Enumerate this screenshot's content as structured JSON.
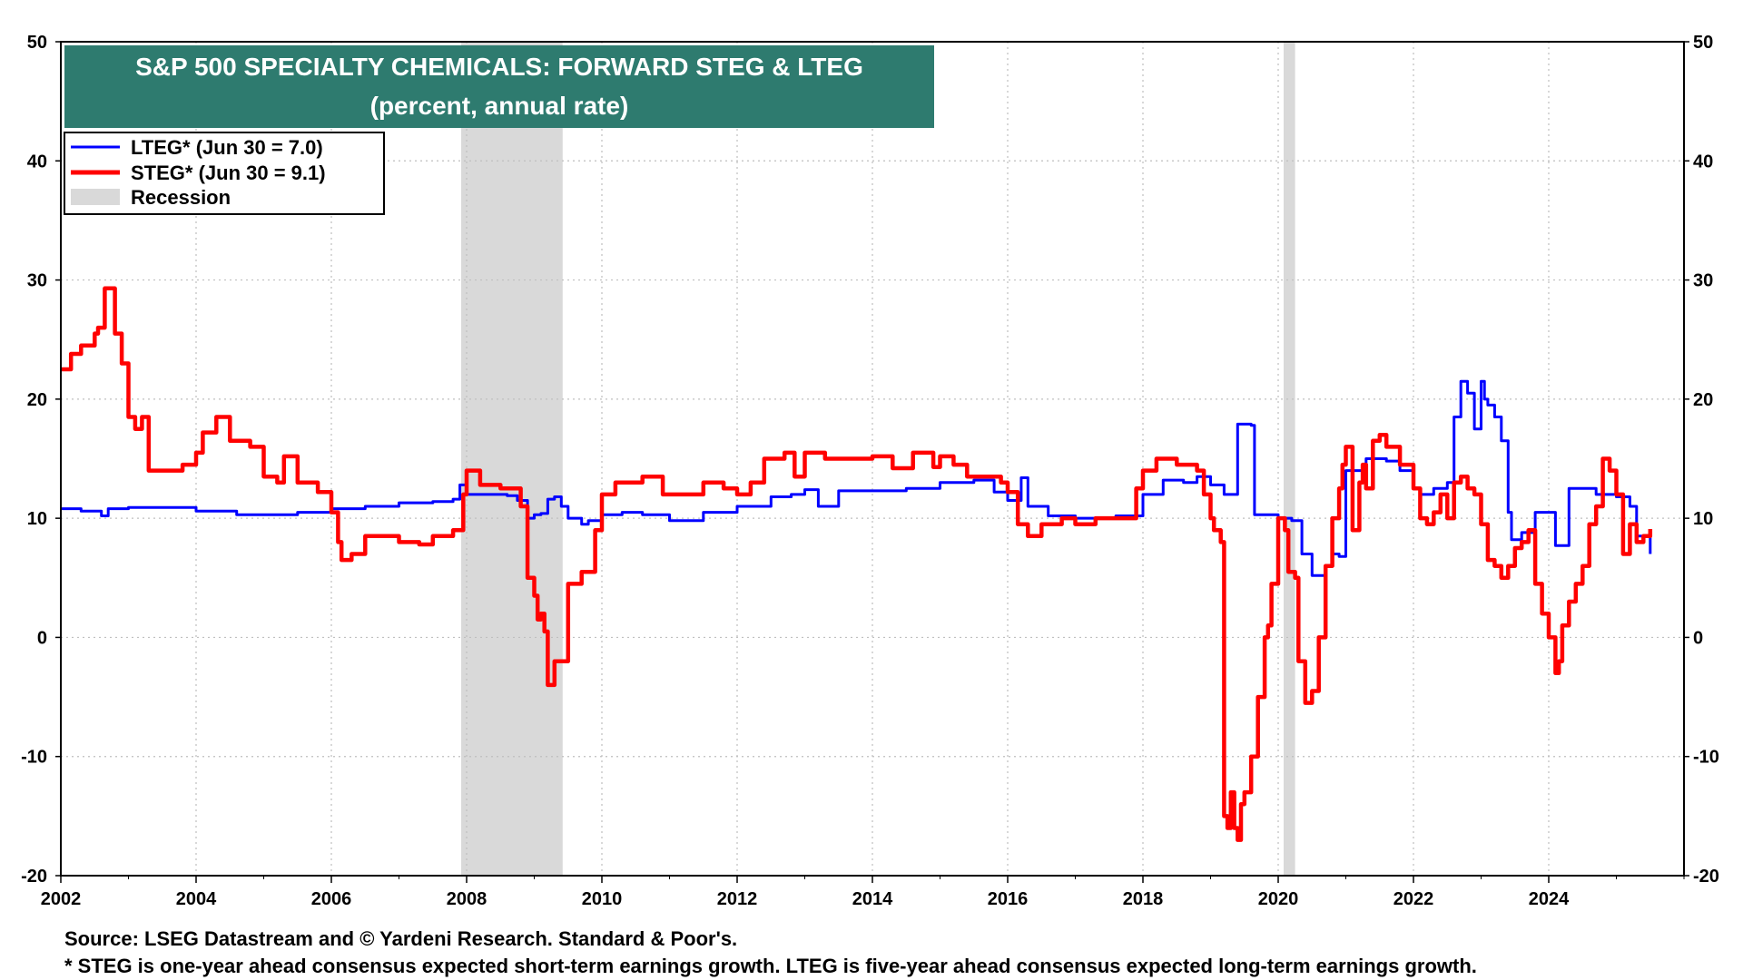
{
  "chart_data": {
    "type": "line",
    "title": "S&P 500 SPECIALTY CHEMICALS: FORWARD STEG & LTEG",
    "subtitle": "(percent, annual rate)",
    "xlabel": "",
    "ylabel": "",
    "xlim": [
      2002,
      2026
    ],
    "ylim": [
      -20,
      50
    ],
    "x_ticks": [
      "2002",
      "2004",
      "2006",
      "2008",
      "2010",
      "2012",
      "2014",
      "2016",
      "2018",
      "2020",
      "2022",
      "2024"
    ],
    "y_ticks": [
      "50",
      "40",
      "30",
      "20",
      "10",
      "0",
      "-10",
      "-20"
    ],
    "grid": true,
    "legend_position": "top-left",
    "legend": [
      {
        "label": "LTEG* (Jun 30 = 7.0)",
        "kind": "line",
        "color": "#0000ff"
      },
      {
        "label": "STEG* (Jun 30 = 9.1)",
        "kind": "line",
        "color": "#ff0000"
      },
      {
        "label": "Recession",
        "kind": "band",
        "color": "#d9d9d9"
      }
    ],
    "recessions": [
      [
        2007.92,
        2009.42
      ],
      [
        2020.08,
        2020.25
      ]
    ],
    "series": [
      {
        "name": "LTEG",
        "color": "#0000ff",
        "x": [
          2002.0,
          2002.3,
          2002.6,
          2002.7,
          2003.0,
          2003.5,
          2004.0,
          2004.5,
          2004.6,
          2005.0,
          2005.5,
          2006.0,
          2006.5,
          2007.0,
          2007.5,
          2007.8,
          2007.9,
          2008.0,
          2008.3,
          2008.6,
          2008.75,
          2008.9,
          2009.0,
          2009.1,
          2009.2,
          2009.3,
          2009.4,
          2009.5,
          2009.7,
          2009.8,
          2010.0,
          2010.3,
          2010.6,
          2011.0,
          2011.5,
          2012.0,
          2012.5,
          2012.8,
          2013.0,
          2013.2,
          2013.5,
          2014.0,
          2014.5,
          2015.0,
          2015.5,
          2015.8,
          2016.0,
          2016.2,
          2016.3,
          2016.6,
          2017.0,
          2017.3,
          2017.6,
          2018.0,
          2018.3,
          2018.6,
          2018.8,
          2019.0,
          2019.2,
          2019.35,
          2019.4,
          2019.6,
          2019.65,
          2020.0,
          2020.2,
          2020.35,
          2020.5,
          2020.7,
          2020.8,
          2020.9,
          2021.0,
          2021.3,
          2021.6,
          2021.8,
          2022.0,
          2022.1,
          2022.3,
          2022.5,
          2022.6,
          2022.7,
          2022.8,
          2022.9,
          2023.0,
          2023.05,
          2023.1,
          2023.2,
          2023.3,
          2023.4,
          2023.45,
          2023.6,
          2023.8,
          2024.0,
          2024.1,
          2024.3,
          2024.5,
          2024.7,
          2025.0,
          2025.2,
          2025.3,
          2025.5
        ],
        "values": [
          10.8,
          10.6,
          10.2,
          10.8,
          10.9,
          10.9,
          10.6,
          10.6,
          10.3,
          10.3,
          10.5,
          10.8,
          11.0,
          11.3,
          11.4,
          11.6,
          12.8,
          12.0,
          12.0,
          11.9,
          11.5,
          10.0,
          10.3,
          10.4,
          11.6,
          11.8,
          11.0,
          10.0,
          9.5,
          9.8,
          10.3,
          10.5,
          10.3,
          9.8,
          10.5,
          11.0,
          11.8,
          12.0,
          12.4,
          11.0,
          12.3,
          12.3,
          12.5,
          13.0,
          13.2,
          12.2,
          11.5,
          13.4,
          11.0,
          10.2,
          10.0,
          10.0,
          10.2,
          12.0,
          13.2,
          13.0,
          13.5,
          12.8,
          12.0,
          12.0,
          17.9,
          17.8,
          10.3,
          10.0,
          9.8,
          7.0,
          5.2,
          6.0,
          7.0,
          6.8,
          14.0,
          15.0,
          14.8,
          14.0,
          12.5,
          12.0,
          12.5,
          13.0,
          18.5,
          21.5,
          20.5,
          17.5,
          21.5,
          20.0,
          19.5,
          18.5,
          16.5,
          10.5,
          8.2,
          8.8,
          10.5,
          10.5,
          7.7,
          12.5,
          12.5,
          12.0,
          11.8,
          11.0,
          8.5,
          7.0
        ]
      },
      {
        "name": "STEG",
        "color": "#ff0000",
        "x": [
          2002.0,
          2002.15,
          2002.3,
          2002.5,
          2002.55,
          2002.65,
          2002.8,
          2002.9,
          2003.0,
          2003.1,
          2003.2,
          2003.3,
          2003.5,
          2003.8,
          2004.0,
          2004.1,
          2004.3,
          2004.5,
          2004.8,
          2005.0,
          2005.2,
          2005.3,
          2005.5,
          2005.8,
          2006.0,
          2006.1,
          2006.15,
          2006.3,
          2006.5,
          2006.8,
          2007.0,
          2007.3,
          2007.5,
          2007.8,
          2007.95,
          2008.0,
          2008.2,
          2008.5,
          2008.7,
          2008.8,
          2008.9,
          2009.0,
          2009.05,
          2009.1,
          2009.15,
          2009.2,
          2009.3,
          2009.5,
          2009.7,
          2009.9,
          2010.0,
          2010.2,
          2010.4,
          2010.6,
          2010.9,
          2011.2,
          2011.5,
          2011.8,
          2012.0,
          2012.2,
          2012.4,
          2012.7,
          2012.85,
          2013.0,
          2013.3,
          2013.6,
          2014.0,
          2014.3,
          2014.6,
          2014.9,
          2015.0,
          2015.2,
          2015.4,
          2015.6,
          2015.9,
          2016.0,
          2016.15,
          2016.3,
          2016.5,
          2016.8,
          2017.0,
          2017.3,
          2017.6,
          2017.9,
          2018.0,
          2018.2,
          2018.5,
          2018.8,
          2018.9,
          2019.0,
          2019.05,
          2019.15,
          2019.2,
          2019.25,
          2019.3,
          2019.35,
          2019.4,
          2019.45,
          2019.5,
          2019.6,
          2019.7,
          2019.8,
          2019.85,
          2019.9,
          2020.0,
          2020.1,
          2020.15,
          2020.25,
          2020.3,
          2020.4,
          2020.5,
          2020.6,
          2020.7,
          2020.8,
          2020.9,
          2020.95,
          2021.0,
          2021.1,
          2021.2,
          2021.25,
          2021.3,
          2021.4,
          2021.5,
          2021.6,
          2021.7,
          2021.8,
          2022.0,
          2022.1,
          2022.2,
          2022.3,
          2022.4,
          2022.5,
          2022.6,
          2022.7,
          2022.8,
          2022.9,
          2023.0,
          2023.1,
          2023.2,
          2023.3,
          2023.4,
          2023.5,
          2023.6,
          2023.7,
          2023.8,
          2023.9,
          2024.0,
          2024.1,
          2024.15,
          2024.2,
          2024.3,
          2024.4,
          2024.5,
          2024.6,
          2024.7,
          2024.8,
          2024.9,
          2025.0,
          2025.1,
          2025.2,
          2025.3,
          2025.4,
          2025.5
        ],
        "values": [
          22.5,
          23.8,
          24.5,
          25.5,
          26.0,
          29.3,
          25.5,
          23.0,
          18.5,
          17.5,
          18.5,
          14.0,
          14.0,
          14.5,
          15.5,
          17.2,
          18.5,
          16.5,
          16.0,
          13.5,
          13.0,
          15.2,
          13.0,
          12.2,
          10.5,
          8.0,
          6.5,
          7.0,
          8.5,
          8.5,
          8.0,
          7.8,
          8.5,
          9.0,
          12.0,
          14.0,
          12.8,
          12.5,
          12.5,
          11.0,
          5.0,
          3.5,
          1.5,
          2.0,
          0.5,
          -4.0,
          -2.0,
          4.5,
          5.5,
          9.0,
          12.0,
          13.0,
          13.0,
          13.5,
          12.0,
          12.0,
          13.0,
          12.5,
          12.0,
          13.0,
          15.0,
          15.5,
          13.5,
          15.5,
          15.0,
          15.0,
          15.2,
          14.2,
          15.5,
          14.3,
          15.2,
          14.5,
          13.5,
          13.5,
          13.0,
          12.2,
          9.5,
          8.5,
          9.5,
          10.0,
          9.5,
          10.0,
          10.0,
          12.5,
          14.0,
          15.0,
          14.5,
          14.0,
          12.0,
          10.0,
          9.0,
          8.0,
          -15.0,
          -16.0,
          -13.0,
          -16.0,
          -17.0,
          -14.0,
          -13.0,
          -10.0,
          -5.0,
          0.0,
          1.0,
          4.5,
          10.0,
          9.0,
          5.5,
          5.0,
          -2.0,
          -5.5,
          -4.5,
          0.0,
          6.0,
          10.0,
          12.5,
          14.5,
          16.0,
          9.0,
          13.0,
          14.5,
          12.5,
          16.5,
          17.0,
          16.0,
          16.0,
          14.5,
          12.5,
          10.0,
          9.5,
          10.5,
          12.0,
          10.0,
          13.0,
          13.5,
          12.5,
          12.0,
          9.5,
          6.5,
          6.0,
          5.0,
          6.0,
          7.5,
          8.0,
          9.0,
          4.5,
          2.0,
          0.0,
          -3.0,
          -2.0,
          1.0,
          3.0,
          4.5,
          6.0,
          9.5,
          11.0,
          15.0,
          14.0,
          12.0,
          7.0,
          9.5,
          8.0,
          8.5,
          9.1
        ]
      }
    ]
  },
  "source_lines": [
    "Source: LSEG Datastream and © Yardeni Research. Standard & Poor's.",
    "* STEG is one-year ahead consensus expected short-term earnings growth. LTEG is five-year ahead consensus expected long-term earnings growth."
  ],
  "colors": {
    "title_bg": "#2e7b6f",
    "grid": "#bfbfbf",
    "recession": "#d9d9d9"
  }
}
